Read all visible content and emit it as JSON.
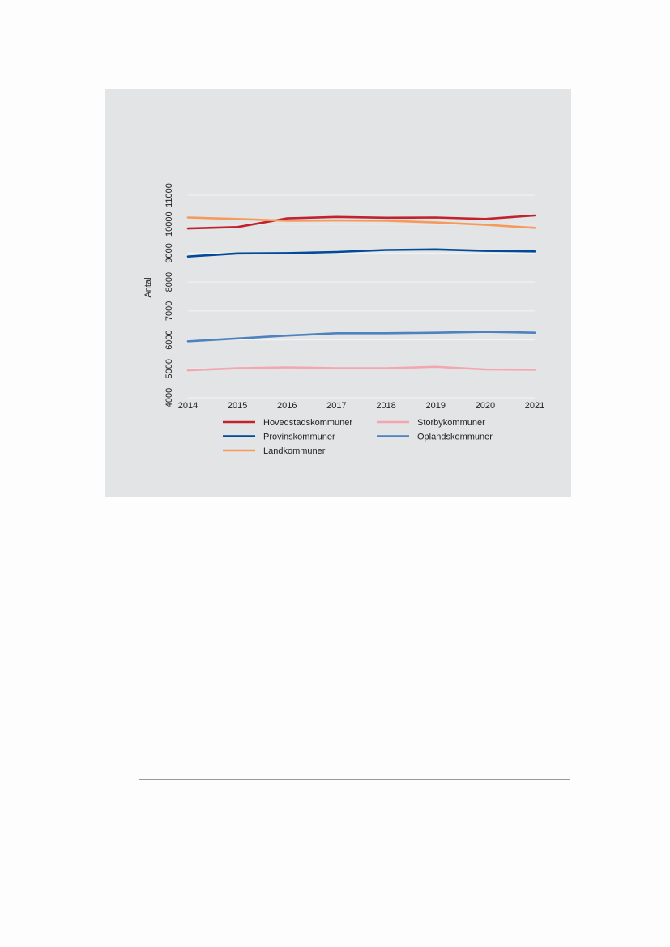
{
  "chart_data": {
    "type": "line",
    "title": "",
    "xlabel": "",
    "ylabel": "Antal",
    "x": [
      2014,
      2015,
      2016,
      2017,
      2018,
      2019,
      2020,
      2021
    ],
    "ylim": [
      4000,
      11000
    ],
    "yticks": [
      4000,
      5000,
      6000,
      7000,
      8000,
      9000,
      10000,
      11000
    ],
    "grid": true,
    "legend": "bottom",
    "series": [
      {
        "name": "Hovedstadskommuner",
        "color": "#c0232e",
        "values": [
          9850,
          9900,
          10200,
          10250,
          10220,
          10230,
          10180,
          10300
        ]
      },
      {
        "name": "Storbykommuner",
        "color": "#f2a7b0",
        "values": [
          4950,
          5020,
          5050,
          5020,
          5020,
          5070,
          4980,
          4970
        ]
      },
      {
        "name": "Provinskommuner",
        "color": "#004a99",
        "values": [
          8880,
          8990,
          9000,
          9040,
          9110,
          9130,
          9080,
          9060
        ]
      },
      {
        "name": "Oplandskommuner",
        "color": "#4d82bf",
        "values": [
          5950,
          6050,
          6150,
          6230,
          6230,
          6250,
          6280,
          6250
        ]
      },
      {
        "name": "Landkommuner",
        "color": "#f59a5b",
        "values": [
          10230,
          10180,
          10120,
          10130,
          10120,
          10060,
          9980,
          9870
        ]
      }
    ]
  }
}
